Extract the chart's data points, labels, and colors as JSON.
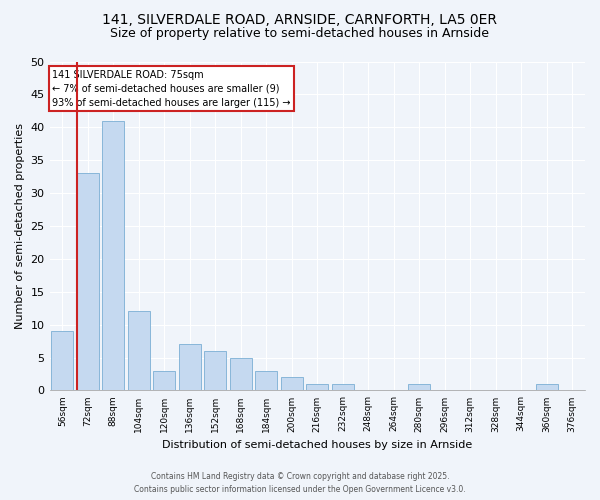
{
  "title": "141, SILVERDALE ROAD, ARNSIDE, CARNFORTH, LA5 0ER",
  "subtitle": "Size of property relative to semi-detached houses in Arnside",
  "xlabel": "Distribution of semi-detached houses by size in Arnside",
  "ylabel": "Number of semi-detached properties",
  "bar_labels": [
    "56sqm",
    "72sqm",
    "88sqm",
    "104sqm",
    "120sqm",
    "136sqm",
    "152sqm",
    "168sqm",
    "184sqm",
    "200sqm",
    "216sqm",
    "232sqm",
    "248sqm",
    "264sqm",
    "280sqm",
    "296sqm",
    "312sqm",
    "328sqm",
    "344sqm",
    "360sqm",
    "376sqm"
  ],
  "bar_values": [
    9,
    33,
    41,
    12,
    3,
    7,
    6,
    5,
    3,
    2,
    1,
    1,
    0,
    0,
    1,
    0,
    0,
    0,
    0,
    1,
    0
  ],
  "bar_color": "#c5d9f0",
  "bar_edge_color": "#7bafd4",
  "highlight_index": 1,
  "highlight_color": "#cc2222",
  "annotation_title": "141 SILVERDALE ROAD: 75sqm",
  "annotation_line1": "← 7% of semi-detached houses are smaller (9)",
  "annotation_line2": "93% of semi-detached houses are larger (115) →",
  "annotation_box_color": "#cc2222",
  "ylim": [
    0,
    50
  ],
  "yticks": [
    0,
    5,
    10,
    15,
    20,
    25,
    30,
    35,
    40,
    45,
    50
  ],
  "bg_color": "#f0f4fa",
  "plot_bg_color": "#f0f4fa",
  "grid_color": "#ffffff",
  "footer_line1": "Contains HM Land Registry data © Crown copyright and database right 2025.",
  "footer_line2": "Contains public sector information licensed under the Open Government Licence v3.0.",
  "title_fontsize": 10,
  "subtitle_fontsize": 9
}
